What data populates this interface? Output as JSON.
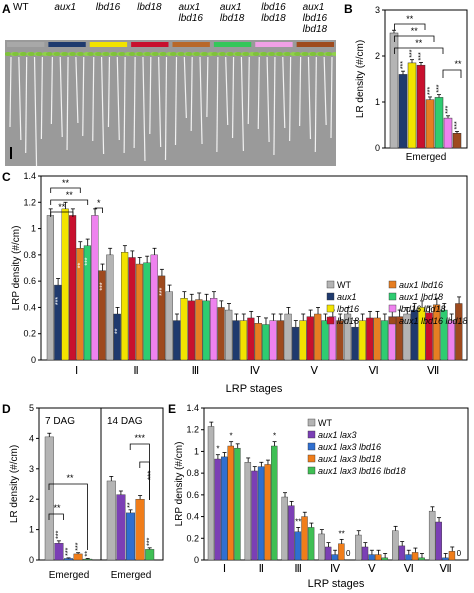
{
  "panels": {
    "A": {
      "letter": "A",
      "genotypes": [
        "WT",
        "aux1",
        "lbd16",
        "lbd18",
        "aux1\nlbd16",
        "aux1\nlbd18",
        "lbd16\nlbd18",
        "aux1\nlbd16\nlbd18"
      ],
      "bar_colors": [
        "#a8a8a8",
        "#1f3a6e",
        "#f2e300",
        "#c8102e",
        "#b8682a",
        "#34c759",
        "#f0a0e6",
        "#9e4a1e"
      ],
      "photo_bg": "#9a9a9a"
    },
    "B": {
      "letter": "B"
    },
    "C": {
      "letter": "C"
    },
    "D": {
      "letter": "D"
    },
    "E": {
      "letter": "E"
    }
  },
  "chart_data": [
    {
      "id": "B",
      "type": "bar",
      "ylabel": "LR density (#/cm)",
      "xlabel": "Emerged",
      "ylim": [
        0,
        3
      ],
      "yticks": [
        "0",
        "1",
        "2",
        "3"
      ],
      "categories": [
        "Emerged"
      ],
      "series": [
        {
          "name": "WT",
          "color": "#b4b4b4",
          "values": [
            2.5
          ],
          "err": [
            0.06
          ],
          "mark": ""
        },
        {
          "name": "aux1",
          "color": "#1f3a6e",
          "values": [
            1.6
          ],
          "err": [
            0.07
          ],
          "mark": "***"
        },
        {
          "name": "lbd16",
          "color": "#f2e300",
          "values": [
            1.85
          ],
          "err": [
            0.07
          ],
          "mark": "***"
        },
        {
          "name": "lbd18",
          "color": "#c8102e",
          "values": [
            1.8
          ],
          "err": [
            0.06
          ],
          "mark": "***"
        },
        {
          "name": "aux1 lbd16",
          "color": "#e67e22",
          "values": [
            1.05
          ],
          "err": [
            0.06
          ],
          "mark": "***"
        },
        {
          "name": "aux1 lbd18",
          "color": "#2ecc71",
          "values": [
            1.1
          ],
          "err": [
            0.06
          ],
          "mark": "***"
        },
        {
          "name": "lbd16 lbd18",
          "color": "#ee82ee",
          "values": [
            0.65
          ],
          "err": [
            0.05
          ],
          "mark": "***"
        },
        {
          "name": "aux1 lbd16 lbd18",
          "color": "#9e4a1e",
          "values": [
            0.32
          ],
          "err": [
            0.04
          ],
          "mark": "***"
        }
      ],
      "brackets": [
        "**",
        "**",
        "**",
        "**"
      ]
    },
    {
      "id": "C",
      "type": "bar",
      "ylabel": "LRP density (#/cm)",
      "xlabel": "LRP stages",
      "ylim": [
        0,
        1.4
      ],
      "yticks": [
        "0",
        "0.2",
        "0.4",
        "0.6",
        "0.8",
        "1",
        "1.2",
        "1.4"
      ],
      "categories": [
        "Ⅰ",
        "Ⅱ",
        "Ⅲ",
        "Ⅳ",
        "Ⅴ",
        "Ⅵ",
        "Ⅶ"
      ],
      "series": [
        {
          "name": "WT",
          "color": "#b4b4b4",
          "values": [
            1.1,
            0.8,
            0.52,
            0.38,
            0.35,
            0.35,
            0.35
          ]
        },
        {
          "name": "aux1",
          "color": "#1f3a6e",
          "values": [
            0.57,
            0.35,
            0.3,
            0.3,
            0.25,
            0.25,
            0.38
          ]
        },
        {
          "name": "lbd16",
          "color": "#f2e300",
          "values": [
            1.15,
            0.82,
            0.47,
            0.3,
            0.3,
            0.3,
            0.4
          ]
        },
        {
          "name": "lbd18",
          "color": "#c8102e",
          "values": [
            1.1,
            0.78,
            0.45,
            0.32,
            0.33,
            0.32,
            0.36
          ]
        },
        {
          "name": "aux1 lbd16",
          "color": "#e67e22",
          "values": [
            0.85,
            0.73,
            0.46,
            0.28,
            0.35,
            0.32,
            0.42
          ]
        },
        {
          "name": "aux1 lbd18",
          "color": "#2ecc71",
          "values": [
            0.87,
            0.74,
            0.45,
            0.27,
            0.3,
            0.3,
            0.38
          ]
        },
        {
          "name": "lbd16 lbd18",
          "color": "#ee82ee",
          "values": [
            1.1,
            0.8,
            0.47,
            0.3,
            0.33,
            0.33,
            0.3
          ]
        },
        {
          "name": "aux1 lbd16 lbd18",
          "color": "#9e4a1e",
          "values": [
            0.68,
            0.64,
            0.4,
            0.3,
            0.3,
            0.33,
            0.43
          ]
        }
      ],
      "legend": [
        "WT",
        "aux1",
        "lbd16",
        "lbd18",
        "aux1 lbd16",
        "aux1 lbd18",
        "lbd16 lbd18",
        "aux1 lbd16 lbd18"
      ],
      "annotations": [
        "**",
        "**",
        "**",
        "*"
      ],
      "star_marks": [
        "***",
        "**",
        "***",
        "***",
        "**",
        "***"
      ]
    },
    {
      "id": "D",
      "type": "bar",
      "ylabel": "LR density (#/cm)",
      "ylim": [
        0,
        5
      ],
      "yticks": [
        "0",
        "1",
        "2",
        "3",
        "4",
        "5"
      ],
      "groups": [
        {
          "title": "7 DAG",
          "xlabel": "Emerged",
          "series": [
            {
              "name": "WT",
              "color": "#b4b4b4",
              "values": [
                4.05
              ],
              "err": [
                0.12
              ],
              "mark": ""
            },
            {
              "name": "aux1 lax3",
              "color": "#7b3fb5",
              "values": [
                0.55
              ],
              "err": [
                0.08
              ],
              "mark": "***"
            },
            {
              "name": "aux1 lax3 lbd16",
              "color": "#2f6fd0",
              "values": [
                0.05
              ],
              "err": [
                0.02
              ],
              "mark": "***"
            },
            {
              "name": "aux1 lax3 lbd18",
              "color": "#f07d1a",
              "values": [
                0.2
              ],
              "err": [
                0.04
              ],
              "mark": "***"
            },
            {
              "name": "aux1 lax3 lbd16 lbd18",
              "color": "#3fbf54",
              "values": [
                0.03
              ],
              "err": [
                0.02
              ],
              "mark": "**"
            }
          ],
          "brackets": [
            "**",
            "**"
          ]
        },
        {
          "title": "14 DAG",
          "xlabel": "Emerged",
          "series": [
            {
              "name": "WT",
              "color": "#b4b4b4",
              "values": [
                2.6
              ],
              "err": [
                0.15
              ],
              "mark": ""
            },
            {
              "name": "aux1 lax3",
              "color": "#7b3fb5",
              "values": [
                2.15
              ],
              "err": [
                0.12
              ],
              "mark": ""
            },
            {
              "name": "aux1 lax3 lbd16",
              "color": "#2f6fd0",
              "values": [
                1.55
              ],
              "err": [
                0.1
              ],
              "mark": "**"
            },
            {
              "name": "aux1 lax3 lbd18",
              "color": "#f07d1a",
              "values": [
                2.0
              ],
              "err": [
                0.12
              ],
              "mark": ""
            },
            {
              "name": "aux1 lax3 lbd16 lbd18",
              "color": "#3fbf54",
              "values": [
                0.35
              ],
              "err": [
                0.05
              ],
              "mark": "***"
            }
          ],
          "brackets": [
            "***",
            "***"
          ]
        }
      ]
    },
    {
      "id": "E",
      "type": "bar",
      "ylabel": "LRP density (#/cm)",
      "xlabel": "LRP stages",
      "ylim": [
        0,
        1.4
      ],
      "yticks": [
        "0",
        "0.2",
        "0.4",
        "0.6",
        "0.8",
        "1",
        "1.2",
        "1.4"
      ],
      "categories": [
        "Ⅰ",
        "Ⅱ",
        "Ⅲ",
        "Ⅳ",
        "Ⅴ",
        "Ⅵ",
        "Ⅶ"
      ],
      "series": [
        {
          "name": "WT",
          "color": "#b4b4b4",
          "values": [
            1.23,
            0.9,
            0.58,
            0.24,
            0.23,
            0.27,
            0.45
          ]
        },
        {
          "name": "aux1 lax3",
          "color": "#7b3fb5",
          "values": [
            0.93,
            0.82,
            0.5,
            0.12,
            0.12,
            0.13,
            0.35
          ]
        },
        {
          "name": "aux1 lax3 lbd16",
          "color": "#2f6fd0",
          "values": [
            0.95,
            0.86,
            0.26,
            0.05,
            0.05,
            0.05,
            0.02
          ]
        },
        {
          "name": "aux1 lax3 lbd18",
          "color": "#f07d1a",
          "values": [
            1.05,
            0.88,
            0.4,
            0.15,
            0.05,
            0.07,
            0.08
          ]
        },
        {
          "name": "aux1 lax3 lbd16 lbd18",
          "color": "#3fbf54",
          "values": [
            1.03,
            1.05,
            0.3,
            0.0,
            0.02,
            0.02,
            0.0
          ]
        }
      ],
      "legend": [
        "WT",
        "aux1 lax3",
        "aux1 lax3 lbd16",
        "aux1 lax3 lbd18",
        "aux1 lax3 lbd16 lbd18"
      ],
      "zero_label": "0",
      "star_marks": [
        "*",
        "*",
        "*",
        "**",
        "**"
      ]
    }
  ]
}
